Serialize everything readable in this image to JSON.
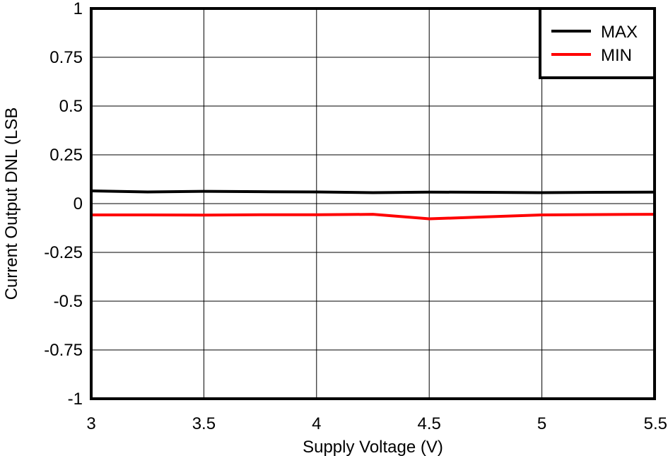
{
  "chart_data": {
    "type": "line",
    "title": "",
    "xlabel": "Supply Voltage (V)",
    "ylabel": "Current Output DNL (LSB",
    "xlim": [
      3,
      5.5
    ],
    "ylim": [
      -1,
      1
    ],
    "x_ticks": [
      3,
      3.5,
      4,
      4.5,
      5,
      5.5
    ],
    "x_tick_labels": [
      "3",
      "3.5",
      "4",
      "4.5",
      "5",
      "5.5"
    ],
    "y_ticks": [
      1,
      0.75,
      0.5,
      0.25,
      0,
      -0.25,
      -0.5,
      -0.75,
      -1
    ],
    "y_tick_labels": [
      "1",
      "0.75",
      "0.5",
      "0.25",
      "0",
      "-0.25",
      "-0.5",
      "-0.75",
      "-1"
    ],
    "grid": true,
    "legend_position": "top-right",
    "series": [
      {
        "name": "MAX",
        "color": "#000000",
        "x": [
          3,
          3.25,
          3.5,
          3.75,
          4,
          4.25,
          4.5,
          4.75,
          5,
          5.25,
          5.5
        ],
        "y": [
          0.065,
          0.06,
          0.063,
          0.061,
          0.06,
          0.056,
          0.059,
          0.058,
          0.056,
          0.058,
          0.059
        ]
      },
      {
        "name": "MIN",
        "color": "#ff0000",
        "x": [
          3,
          3.25,
          3.5,
          3.75,
          4,
          4.25,
          4.5,
          4.75,
          5,
          5.25,
          5.5
        ],
        "y": [
          -0.058,
          -0.058,
          -0.059,
          -0.057,
          -0.057,
          -0.055,
          -0.078,
          -0.068,
          -0.058,
          -0.056,
          -0.055
        ]
      }
    ]
  }
}
